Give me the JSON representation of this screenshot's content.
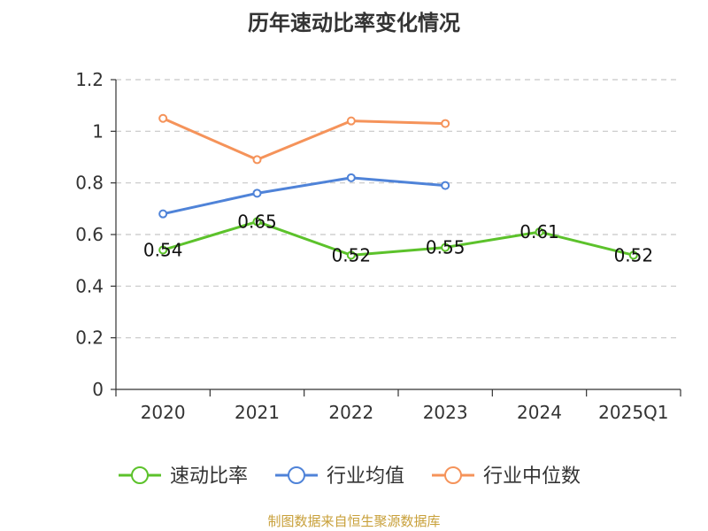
{
  "chart_data": {
    "type": "line",
    "title": "历年速动比率变化情况",
    "categories": [
      "2020",
      "2021",
      "2022",
      "2023",
      "2024",
      "2025Q1"
    ],
    "ylim": [
      0,
      1.2
    ],
    "yticks": [
      "0",
      "0.2",
      "0.4",
      "0.6",
      "0.8",
      "1",
      "1.2"
    ],
    "grid": true,
    "legend_position": "bottom",
    "series": [
      {
        "name": "速动比率",
        "color": "#5cc22b",
        "show_labels": true,
        "values": [
          0.54,
          0.65,
          0.52,
          0.55,
          0.61,
          0.52
        ],
        "labels": [
          "0.54",
          "0.65",
          "0.52",
          "0.55",
          "0.61",
          "0.52"
        ]
      },
      {
        "name": "行业均值",
        "color": "#4f83d8",
        "show_labels": false,
        "values": [
          0.68,
          0.76,
          0.82,
          0.79,
          null,
          null
        ]
      },
      {
        "name": "行业中位数",
        "color": "#f5935a",
        "show_labels": false,
        "values": [
          1.05,
          0.89,
          1.04,
          1.03,
          null,
          null
        ]
      }
    ]
  },
  "source_note": "制图数据来自恒生聚源数据库"
}
